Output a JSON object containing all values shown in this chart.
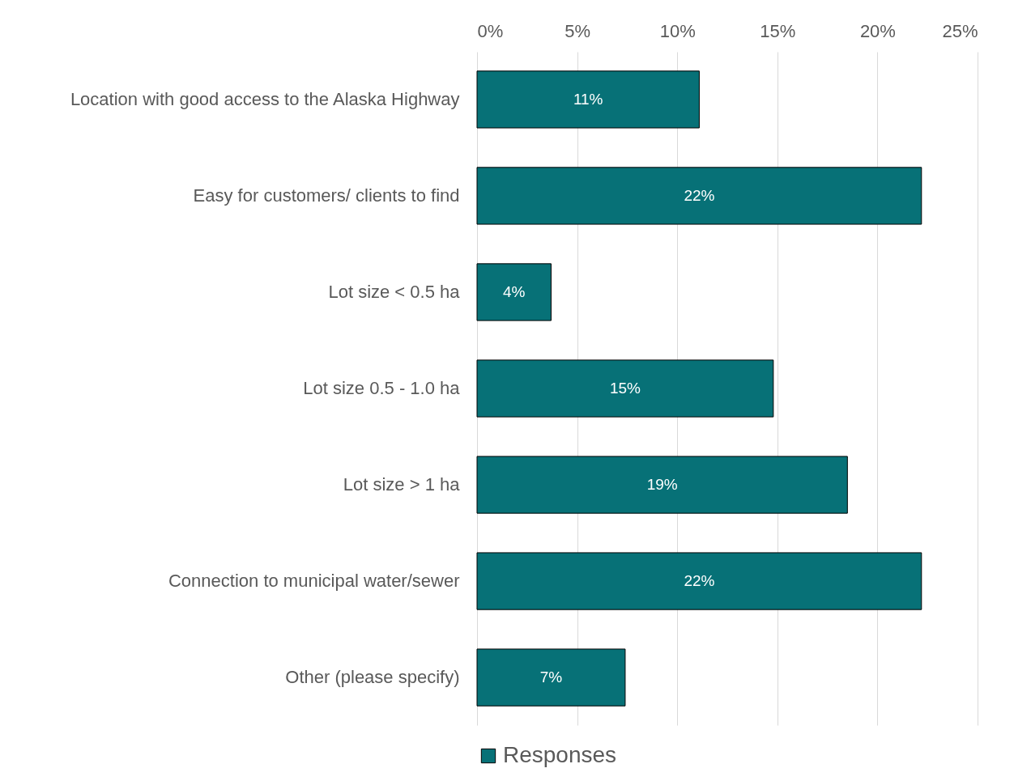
{
  "chart_data": {
    "type": "bar",
    "orientation": "horizontal",
    "categories": [
      "Location with good access to the Alaska Highway",
      "Easy for customers/ clients to find",
      "Lot size < 0.5 ha",
      "Lot size 0.5 - 1.0 ha",
      "Lot size > 1 ha",
      "Connection to municipal water/sewer",
      "Other (please specify)"
    ],
    "series": [
      {
        "name": "Responses",
        "color": "#077177",
        "values": [
          11.1,
          22.2,
          3.7,
          14.8,
          18.5,
          22.2,
          7.4
        ],
        "value_labels": [
          "11%",
          "22%",
          "4%",
          "15%",
          "19%",
          "22%",
          "7%"
        ]
      }
    ],
    "xlim": [
      0,
      25
    ],
    "xticks": [
      {
        "value": 0,
        "label": "0%"
      },
      {
        "value": 5,
        "label": "5%"
      },
      {
        "value": 10,
        "label": "10%"
      },
      {
        "value": 15,
        "label": "15%"
      },
      {
        "value": 20,
        "label": "20%"
      },
      {
        "value": 25,
        "label": "25%"
      }
    ],
    "grid": "x",
    "legend": "bottom"
  }
}
